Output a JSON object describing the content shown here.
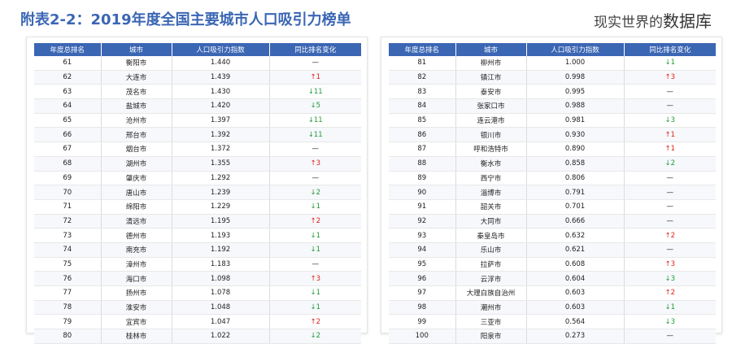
{
  "title": "附表2-2：2019年度全国主要城市人口吸引力榜单",
  "watermark": {
    "prefix": "现实世界的",
    "suffix": "数据库"
  },
  "colors": {
    "header": "#3B66B4",
    "up": "#e0211a",
    "down": "#1f9a3a"
  },
  "headers": [
    "年度总排名",
    "城市",
    "人口吸引力指数",
    "同比排名变化"
  ],
  "left_rows": [
    {
      "rank": "61",
      "city": "衡阳市",
      "index": "1.440",
      "change": "—",
      "dir": "flat"
    },
    {
      "rank": "62",
      "city": "大连市",
      "index": "1.439",
      "change": "↑1",
      "dir": "up"
    },
    {
      "rank": "63",
      "city": "茂名市",
      "index": "1.430",
      "change": "↓11",
      "dir": "down"
    },
    {
      "rank": "64",
      "city": "盐城市",
      "index": "1.420",
      "change": "↓5",
      "dir": "down"
    },
    {
      "rank": "65",
      "city": "沧州市",
      "index": "1.397",
      "change": "↓11",
      "dir": "down"
    },
    {
      "rank": "66",
      "city": "邢台市",
      "index": "1.392",
      "change": "↓11",
      "dir": "down"
    },
    {
      "rank": "67",
      "city": "烟台市",
      "index": "1.372",
      "change": "—",
      "dir": "flat"
    },
    {
      "rank": "68",
      "city": "湖州市",
      "index": "1.355",
      "change": "↑3",
      "dir": "up"
    },
    {
      "rank": "69",
      "city": "肇庆市",
      "index": "1.292",
      "change": "—",
      "dir": "flat"
    },
    {
      "rank": "70",
      "city": "唐山市",
      "index": "1.239",
      "change": "↓2",
      "dir": "down"
    },
    {
      "rank": "71",
      "city": "绵阳市",
      "index": "1.229",
      "change": "↓1",
      "dir": "down"
    },
    {
      "rank": "72",
      "city": "清远市",
      "index": "1.195",
      "change": "↑2",
      "dir": "up"
    },
    {
      "rank": "73",
      "city": "德州市",
      "index": "1.193",
      "change": "↓1",
      "dir": "down"
    },
    {
      "rank": "74",
      "city": "南充市",
      "index": "1.192",
      "change": "↓1",
      "dir": "down"
    },
    {
      "rank": "75",
      "city": "漳州市",
      "index": "1.183",
      "change": "—",
      "dir": "flat"
    },
    {
      "rank": "76",
      "city": "海口市",
      "index": "1.098",
      "change": "↑3",
      "dir": "up"
    },
    {
      "rank": "77",
      "city": "扬州市",
      "index": "1.078",
      "change": "↓1",
      "dir": "down"
    },
    {
      "rank": "78",
      "city": "淮安市",
      "index": "1.048",
      "change": "↓1",
      "dir": "down"
    },
    {
      "rank": "79",
      "city": "宜宾市",
      "index": "1.047",
      "change": "↑2",
      "dir": "up"
    },
    {
      "rank": "80",
      "city": "桂林市",
      "index": "1.022",
      "change": "↓2",
      "dir": "down"
    }
  ],
  "right_rows": [
    {
      "rank": "81",
      "city": "柳州市",
      "index": "1.000",
      "change": "↓1",
      "dir": "down"
    },
    {
      "rank": "82",
      "city": "镇江市",
      "index": "0.998",
      "change": "↑3",
      "dir": "up"
    },
    {
      "rank": "83",
      "city": "泰安市",
      "index": "0.995",
      "change": "—",
      "dir": "flat"
    },
    {
      "rank": "84",
      "city": "张家口市",
      "index": "0.988",
      "change": "—",
      "dir": "flat"
    },
    {
      "rank": "85",
      "city": "连云港市",
      "index": "0.981",
      "change": "↓3",
      "dir": "down"
    },
    {
      "rank": "86",
      "city": "银川市",
      "index": "0.930",
      "change": "↑1",
      "dir": "up"
    },
    {
      "rank": "87",
      "city": "呼和浩特市",
      "index": "0.890",
      "change": "↑1",
      "dir": "up"
    },
    {
      "rank": "88",
      "city": "衡水市",
      "index": "0.858",
      "change": "↓2",
      "dir": "down"
    },
    {
      "rank": "89",
      "city": "西宁市",
      "index": "0.806",
      "change": "—",
      "dir": "flat"
    },
    {
      "rank": "90",
      "city": "淄博市",
      "index": "0.791",
      "change": "—",
      "dir": "flat"
    },
    {
      "rank": "91",
      "city": "韶关市",
      "index": "0.701",
      "change": "—",
      "dir": "flat"
    },
    {
      "rank": "92",
      "city": "大同市",
      "index": "0.666",
      "change": "—",
      "dir": "flat"
    },
    {
      "rank": "93",
      "city": "秦皇岛市",
      "index": "0.632",
      "change": "↑2",
      "dir": "up"
    },
    {
      "rank": "94",
      "city": "乐山市",
      "index": "0.621",
      "change": "—",
      "dir": "flat"
    },
    {
      "rank": "95",
      "city": "拉萨市",
      "index": "0.608",
      "change": "↑3",
      "dir": "up"
    },
    {
      "rank": "96",
      "city": "云浮市",
      "index": "0.604",
      "change": "↓3",
      "dir": "down"
    },
    {
      "rank": "97",
      "city": "大理白族自治州",
      "index": "0.603",
      "change": "↑2",
      "dir": "up"
    },
    {
      "rank": "98",
      "city": "潮州市",
      "index": "0.603",
      "change": "↓1",
      "dir": "down"
    },
    {
      "rank": "99",
      "city": "三亚市",
      "index": "0.564",
      "change": "↓3",
      "dir": "down"
    },
    {
      "rank": "100",
      "city": "阳泉市",
      "index": "0.273",
      "change": "—",
      "dir": "flat"
    }
  ]
}
